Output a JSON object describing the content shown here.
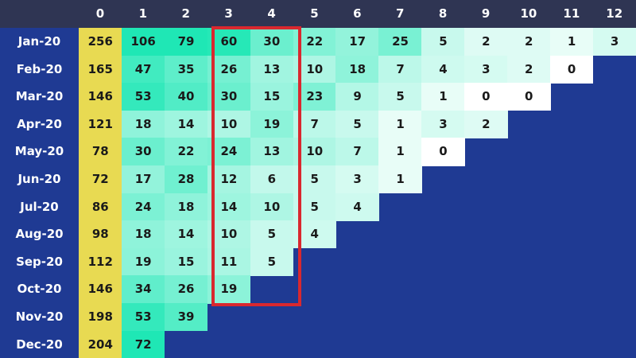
{
  "chart_data": {
    "type": "heatmap",
    "columns": [
      "0",
      "1",
      "2",
      "3",
      "4",
      "5",
      "6",
      "7",
      "8",
      "9",
      "10",
      "11",
      "12"
    ],
    "rows": [
      {
        "label": "Jan-20",
        "values": [
          256,
          106,
          79,
          60,
          30,
          22,
          17,
          25,
          5,
          2,
          2,
          1,
          3
        ]
      },
      {
        "label": "Feb-20",
        "values": [
          165,
          47,
          35,
          26,
          13,
          10,
          18,
          7,
          4,
          3,
          2,
          0
        ]
      },
      {
        "label": "Mar-20",
        "values": [
          146,
          53,
          40,
          30,
          15,
          23,
          9,
          5,
          1,
          0,
          0
        ]
      },
      {
        "label": "Apr-20",
        "values": [
          121,
          18,
          14,
          10,
          19,
          7,
          5,
          1,
          3,
          2
        ]
      },
      {
        "label": "May-20",
        "values": [
          78,
          30,
          22,
          24,
          13,
          10,
          7,
          1,
          0
        ]
      },
      {
        "label": "Jun-20",
        "values": [
          72,
          17,
          28,
          12,
          6,
          5,
          3,
          1
        ]
      },
      {
        "label": "Jul-20",
        "values": [
          86,
          24,
          18,
          14,
          10,
          5,
          4
        ]
      },
      {
        "label": "Aug-20",
        "values": [
          98,
          18,
          14,
          10,
          5,
          4
        ]
      },
      {
        "label": "Sep-20",
        "values": [
          112,
          19,
          15,
          11,
          5
        ]
      },
      {
        "label": "Oct-20",
        "values": [
          146,
          34,
          26,
          19
        ]
      },
      {
        "label": "Nov-20",
        "values": [
          198,
          53,
          39
        ]
      },
      {
        "label": "Dec-20",
        "values": [
          204,
          72
        ]
      }
    ],
    "highlight_columns": [
      "3",
      "4"
    ],
    "colors": {
      "background": "#1f3a93",
      "header_background": "#2f3553",
      "first_column": "#e8da52",
      "heat_high": "#1fe7b5",
      "heat_low": "#ffffff",
      "highlight_border": "#d9282f"
    }
  }
}
